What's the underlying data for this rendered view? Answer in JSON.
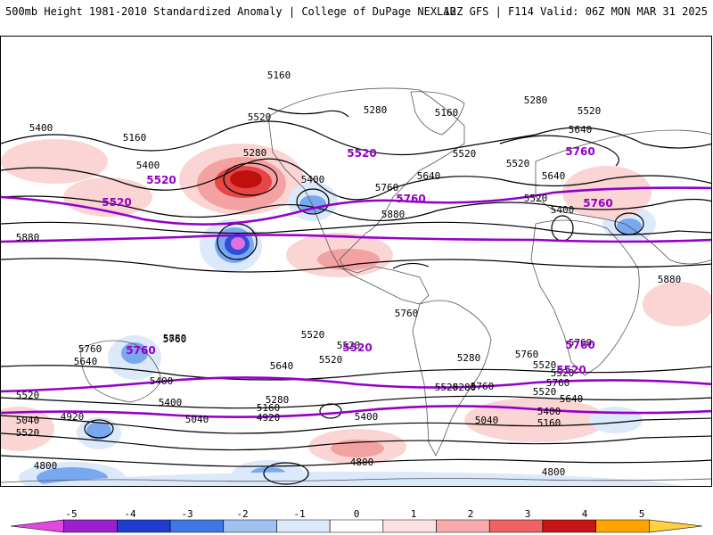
{
  "header": {
    "left": "500mb Height 1981-2010 Standardized Anomaly | College of DuPage NEXLAB",
    "right": "12Z GFS | F114 Valid: 06Z MON MAR 31 2025"
  },
  "colorbar": {
    "ticks": [
      "-5",
      "-4",
      "-3",
      "-2",
      "-1",
      "0",
      "1",
      "2",
      "3",
      "4",
      "5"
    ],
    "colors": [
      "#e048e0",
      "#9c1fd0",
      "#1f3ed0",
      "#3f78e6",
      "#9fc2f2",
      "#dbe9fb",
      "#ffffff",
      "#fde0e0",
      "#f8aaaa",
      "#ef6262",
      "#c81414",
      "#ffa500",
      "#ffd040"
    ]
  },
  "map": {
    "purple_color": "#9400c8",
    "contour_color": "#000000",
    "contour_labels": [
      "5160",
      "5520",
      "5280",
      "5160",
      "5280",
      "5520",
      "5400",
      "5280",
      "5160",
      "5640",
      "5400",
      "5520",
      "5640",
      "5760",
      "5400",
      "5520",
      "5640",
      "5520",
      "5400",
      "5880",
      "5880",
      "5880",
      "5760",
      "5520",
      "5880",
      "5640",
      "5520",
      "5760",
      "5280",
      "5640",
      "5400",
      "5520",
      "5400",
      "5280",
      "5160",
      "5040",
      "4920",
      "5520",
      "5400",
      "5040",
      "4920",
      "4800",
      "4800",
      "4800",
      "5760",
      "5520",
      "5760",
      "5520",
      "5760",
      "5520",
      "5760",
      "5520",
      "5760",
      "5520",
      "5280",
      "5040",
      "5160",
      "5400",
      "5640"
    ],
    "purple_labels": [
      "5520",
      "5760",
      "5520",
      "5760",
      "5520",
      "5760",
      "5760",
      "5520",
      "5760",
      "5520"
    ]
  }
}
